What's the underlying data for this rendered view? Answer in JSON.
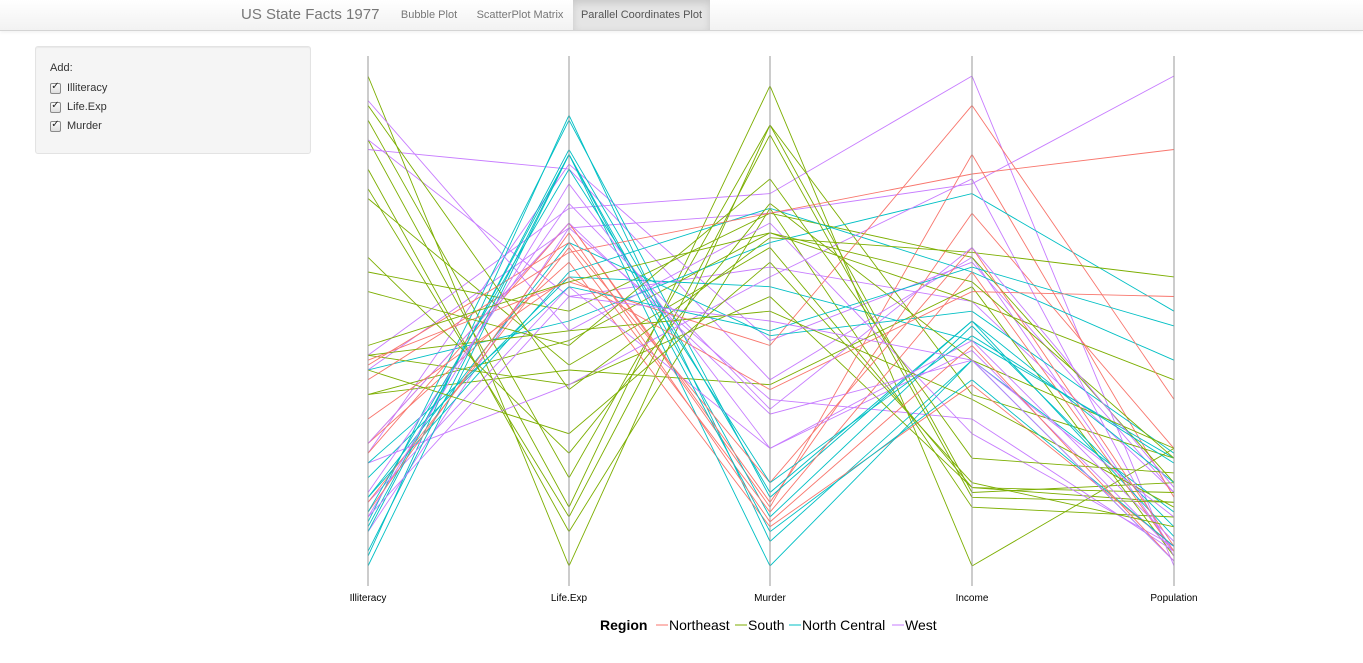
{
  "app": {
    "brand": "US State Facts 1977",
    "tabs": [
      {
        "label": "Bubble Plot",
        "active": false
      },
      {
        "label": "ScatterPlot Matrix",
        "active": false
      },
      {
        "label": "Parallel Coordinates Plot",
        "active": true
      }
    ]
  },
  "sidebar": {
    "label": "Add:",
    "options": [
      {
        "label": "Illiteracy",
        "checked": true
      },
      {
        "label": "Life.Exp",
        "checked": true
      },
      {
        "label": "Murder",
        "checked": true
      }
    ]
  },
  "colors": {
    "Northeast": "#F8766D",
    "South": "#7CAE00",
    "North Central": "#00BFC4",
    "West": "#C77CFF",
    "axis": "#999999"
  },
  "chart_data": {
    "type": "parallel-coordinates",
    "dimensions": [
      "Illiteracy",
      "Life.Exp",
      "Murder",
      "Income",
      "Population"
    ],
    "value_scale": "each axis scaled 0-1 (min to max)",
    "legend": {
      "title": "Region",
      "entries": [
        "Northeast",
        "South",
        "North Central",
        "West"
      ]
    },
    "series": [
      {
        "group": "South",
        "values": [
          0.87,
          0.12,
          0.98,
          0.0,
          0.24
        ]
      },
      {
        "group": "West",
        "values": [
          0.43,
          0.73,
          0.76,
          1.0,
          0.0
        ]
      },
      {
        "group": "West",
        "values": [
          0.87,
          0.55,
          0.61,
          0.54,
          0.15
        ]
      },
      {
        "group": "South",
        "values": [
          0.75,
          0.41,
          0.65,
          0.16,
          0.13
        ]
      },
      {
        "group": "West",
        "values": [
          0.4,
          0.69,
          0.72,
          0.78,
          1.0
        ]
      },
      {
        "group": "West",
        "values": [
          0.23,
          0.82,
          0.46,
          0.62,
          0.15
        ]
      },
      {
        "group": "Northeast",
        "values": [
          0.25,
          0.7,
          0.12,
          0.84,
          0.14
        ]
      },
      {
        "group": "South",
        "values": [
          0.35,
          0.4,
          0.37,
          0.57,
          0.02
        ]
      },
      {
        "group": "South",
        "values": [
          0.35,
          0.46,
          0.68,
          0.54,
          0.38
        ]
      },
      {
        "group": "South",
        "values": [
          0.91,
          0.18,
          0.9,
          0.35,
          0.22
        ]
      },
      {
        "group": "West",
        "values": [
          0.85,
          0.81,
          0.38,
          0.63,
          0.03
        ]
      },
      {
        "group": "West",
        "values": [
          0.07,
          0.69,
          0.34,
          0.3,
          0.03
        ]
      },
      {
        "group": "North Central",
        "values": [
          0.4,
          0.5,
          0.66,
          0.76,
          0.52
        ]
      },
      {
        "group": "North Central",
        "values": [
          0.14,
          0.66,
          0.47,
          0.52,
          0.23
        ]
      },
      {
        "group": "North Central",
        "values": [
          0.02,
          0.92,
          0.05,
          0.42,
          0.11
        ]
      },
      {
        "group": "North Central",
        "values": [
          0.08,
          0.84,
          0.1,
          0.49,
          0.08
        ]
      },
      {
        "group": "South",
        "values": [
          0.43,
          0.37,
          0.55,
          0.16,
          0.15
        ]
      },
      {
        "group": "South",
        "values": [
          1.0,
          0.0,
          0.9,
          0.15,
          0.17
        ]
      },
      {
        "group": "Northeast",
        "values": [
          0.25,
          0.62,
          0.08,
          0.37,
          0.04
        ]
      },
      {
        "group": "South",
        "values": [
          0.6,
          0.52,
          0.72,
          0.63,
          0.17
        ]
      },
      {
        "group": "Northeast",
        "values": [
          0.23,
          0.7,
          0.13,
          0.72,
          0.24
        ]
      },
      {
        "group": "North Central",
        "values": [
          0.14,
          0.6,
          0.73,
          0.6,
          0.42
        ]
      },
      {
        "group": "North Central",
        "values": [
          0.09,
          0.91,
          0.14,
          0.5,
          0.17
        ]
      },
      {
        "group": "South",
        "values": [
          0.81,
          0.07,
          0.73,
          0.12,
          0.1
        ]
      },
      {
        "group": "North Central",
        "values": [
          0.18,
          0.59,
          0.57,
          0.46,
          0.22
        ]
      },
      {
        "group": "West",
        "values": [
          0.13,
          0.57,
          0.24,
          0.44,
          0.03
        ]
      },
      {
        "group": "North Central",
        "values": [
          0.07,
          0.85,
          0.15,
          0.5,
          0.06
        ]
      },
      {
        "group": "West",
        "values": [
          0.21,
          0.37,
          0.59,
          0.79,
          0.02
        ]
      },
      {
        "group": "Northeast",
        "values": [
          0.13,
          0.65,
          0.11,
          0.6,
          0.03
        ]
      },
      {
        "group": "Northeast",
        "values": [
          0.42,
          0.58,
          0.45,
          0.94,
          0.34
        ]
      },
      {
        "group": "West",
        "values": [
          0.95,
          0.48,
          0.7,
          0.27,
          0.04
        ]
      },
      {
        "group": "Northeast",
        "values": [
          0.38,
          0.64,
          0.72,
          0.8,
          0.85
        ]
      },
      {
        "group": "South",
        "values": [
          0.63,
          0.23,
          0.74,
          0.42,
          0.24
        ]
      },
      {
        "group": "North Central",
        "values": [
          0.0,
          0.84,
          0.0,
          0.42,
          0.01
        ]
      },
      {
        "group": "North Central",
        "values": [
          0.21,
          0.57,
          0.48,
          0.61,
          0.49
        ]
      },
      {
        "group": "South",
        "values": [
          0.43,
          0.48,
          0.52,
          0.34,
          0.12
        ]
      },
      {
        "group": "West",
        "values": [
          0.25,
          0.7,
          0.31,
          0.42,
          0.1
        ]
      },
      {
        "group": "Northeast",
        "values": [
          0.3,
          0.59,
          0.36,
          0.56,
          0.55
        ]
      },
      {
        "group": "Northeast",
        "values": [
          0.41,
          0.66,
          0.17,
          0.65,
          0.04
        ]
      },
      {
        "group": "South",
        "values": [
          0.77,
          0.1,
          0.88,
          0.14,
          0.13
        ]
      },
      {
        "group": "North Central",
        "values": [
          0.03,
          0.84,
          0.07,
          0.38,
          0.04
        ]
      },
      {
        "group": "South",
        "values": [
          0.56,
          0.45,
          0.79,
          0.22,
          0.19
        ]
      },
      {
        "group": "South",
        "values": [
          0.94,
          0.36,
          0.67,
          0.64,
          0.59
        ]
      },
      {
        "group": "West",
        "values": [
          0.1,
          0.78,
          0.24,
          0.46,
          0.05
        ]
      },
      {
        "group": "Northeast",
        "values": [
          0.11,
          0.68,
          0.09,
          0.45,
          0.01
        ]
      },
      {
        "group": "South",
        "values": [
          0.45,
          0.58,
          0.68,
          0.58,
          0.22
        ]
      },
      {
        "group": "West",
        "values": [
          0.15,
          0.74,
          0.32,
          0.65,
          0.16
        ]
      },
      {
        "group": "South",
        "values": [
          0.4,
          0.27,
          0.62,
          0.17,
          0.08
        ]
      },
      {
        "group": "North Central",
        "values": [
          0.11,
          0.81,
          0.17,
          0.47,
          0.21
        ]
      },
      {
        "group": "West",
        "values": [
          0.1,
          0.55,
          0.5,
          0.42,
          0.01
        ]
      }
    ]
  }
}
